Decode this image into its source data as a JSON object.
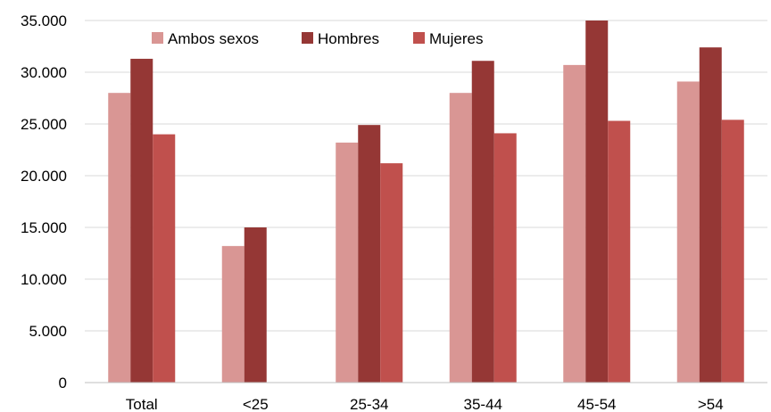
{
  "chart_data": {
    "type": "bar",
    "title": "",
    "xlabel": "",
    "ylabel": "",
    "categories": [
      "Total",
      "<25",
      "25-34",
      "35-44",
      "45-54",
      ">54"
    ],
    "series": [
      {
        "name": "Ambos sexos",
        "color": "#d99694",
        "values": [
          28000,
          13200,
          23200,
          28000,
          30700,
          29100
        ]
      },
      {
        "name": "Hombres",
        "color": "#953735",
        "values": [
          31300,
          15000,
          24900,
          31100,
          35000,
          32400
        ]
      },
      {
        "name": "Mujeres",
        "color": "#c0504d",
        "values": [
          24000,
          null,
          21200,
          24100,
          25300,
          25400
        ]
      }
    ],
    "ylim": [
      0,
      35000
    ],
    "yticks": [
      {
        "value": 0,
        "label": "0"
      },
      {
        "value": 5000,
        "label": "5.000"
      },
      {
        "value": 10000,
        "label": "10.000"
      },
      {
        "value": 15000,
        "label": "15.000"
      },
      {
        "value": 20000,
        "label": "20.000"
      },
      {
        "value": 25000,
        "label": "25.000"
      },
      {
        "value": 30000,
        "label": "30.000"
      },
      {
        "value": 35000,
        "label": "35.000"
      }
    ],
    "grid": true,
    "legend_position": "top"
  }
}
